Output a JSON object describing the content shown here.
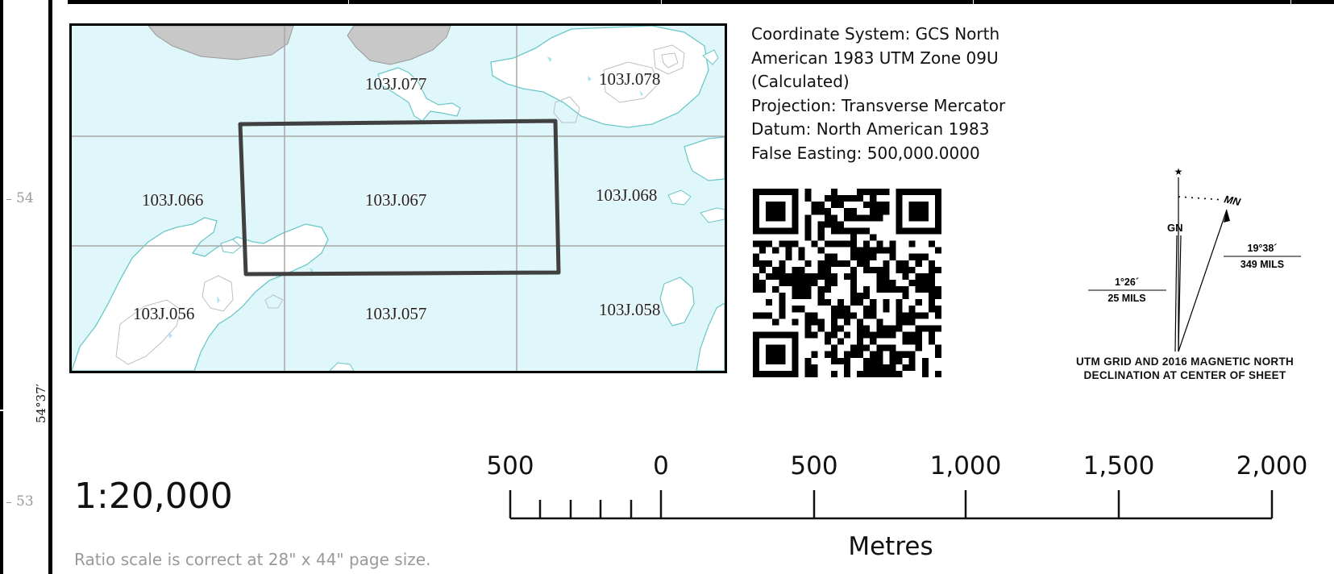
{
  "frame": {
    "left_labels": [
      "54",
      "53"
    ],
    "latitude_label": "54°37′"
  },
  "index_map": {
    "tiles": [
      {
        "label": "103J.077"
      },
      {
        "label": "103J.078"
      },
      {
        "label": "103J.066"
      },
      {
        "label": "103J.067"
      },
      {
        "label": "103J.068"
      },
      {
        "label": "103J.056"
      },
      {
        "label": "103J.057"
      },
      {
        "label": "103J.058"
      }
    ],
    "colors": {
      "water": "#dff7fb",
      "land": "#ffffff",
      "rock": "#c8c8c8",
      "shoreline": "#6cc7c7",
      "grid": "#a8a8a8",
      "highlight": "#404040"
    }
  },
  "info": {
    "lines": [
      "Coordinate System: GCS North",
      "American 1983 UTM Zone 09U",
      "(Calculated)",
      "Projection: Transverse Mercator",
      "Datum: North American 1983",
      "False Easting: 500,000.0000"
    ]
  },
  "declination": {
    "star_label": "★",
    "gn_label": "GN",
    "mn_label": "MN",
    "grid_angle": "1°26´",
    "grid_mils": "25 MILS",
    "mag_angle": "19°38´",
    "mag_mils": "349 MILS",
    "caption_line1": "UTM GRID AND 2016 MAGNETIC NORTH",
    "caption_line2": "DECLINATION AT CENTER OF SHEET"
  },
  "scale": {
    "ratio": "1:20,000",
    "note": "Ratio scale is correct at 28\" x 44\" page size.",
    "tick_labels": [
      "500",
      "0",
      "500",
      "1,000",
      "1,500",
      "2,000"
    ],
    "unit": "Metres"
  }
}
